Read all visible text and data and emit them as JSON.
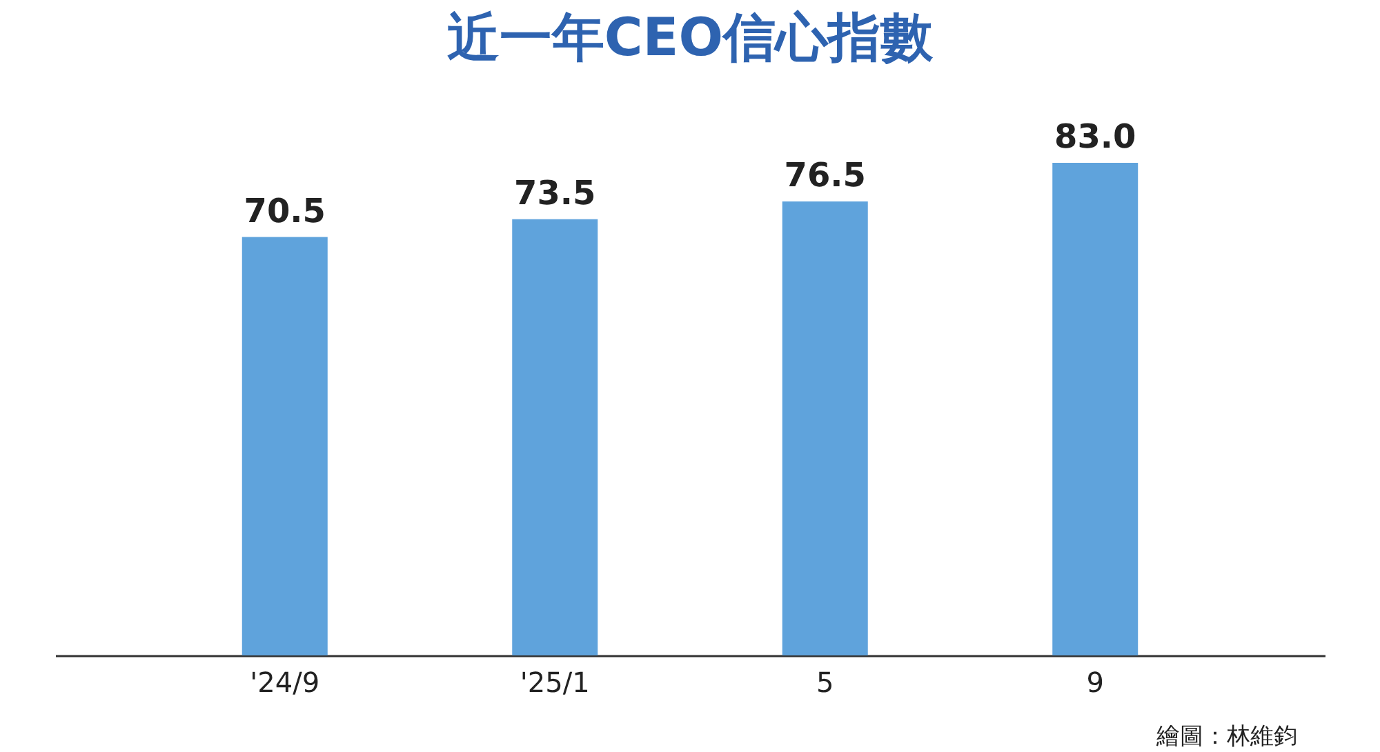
{
  "chart_data": {
    "type": "bar",
    "title": "近一年CEO信心指數",
    "categories": [
      "'24/9",
      "'25/1",
      "5",
      "9"
    ],
    "values": [
      70.5,
      73.5,
      76.5,
      83.0
    ],
    "value_labels": [
      "70.5",
      "73.5",
      "76.5",
      "83.0"
    ],
    "color": "#5fa3dc",
    "annotations": [
      "繪圖：林維鈞"
    ]
  }
}
